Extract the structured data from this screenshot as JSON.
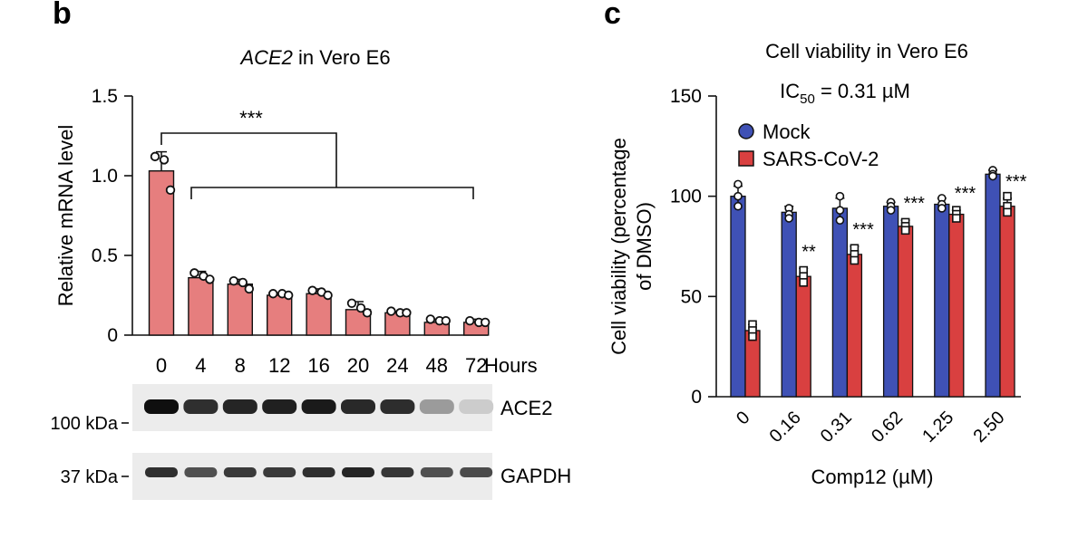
{
  "panels": {
    "b": "b",
    "c": "c"
  },
  "chart_data": [
    {
      "type": "bar",
      "title_italic": "ACE2",
      "title_rest": " in Vero E6",
      "categories": [
        "0",
        "4",
        "8",
        "12",
        "16",
        "20",
        "24",
        "48",
        "72"
      ],
      "values": [
        1.03,
        0.36,
        0.32,
        0.25,
        0.26,
        0.16,
        0.14,
        0.08,
        0.08
      ],
      "errors": [
        0.12,
        0.04,
        0.03,
        0.01,
        0.03,
        0.05,
        0.01,
        0.02,
        0.02
      ],
      "points": [
        [
          1.12,
          1.1,
          0.91
        ],
        [
          0.39,
          0.37,
          0.35
        ],
        [
          0.34,
          0.33,
          0.29
        ],
        [
          0.26,
          0.26,
          0.25
        ],
        [
          0.28,
          0.27,
          0.25
        ],
        [
          0.2,
          0.17,
          0.14
        ],
        [
          0.15,
          0.14,
          0.14
        ],
        [
          0.1,
          0.09,
          0.09
        ],
        [
          0.09,
          0.08,
          0.08
        ]
      ],
      "xlabel": "Hours",
      "ylabel": "Relative mRNA level",
      "ylim": [
        0,
        1.5
      ],
      "yticks": [
        "0",
        "0.5",
        "1.0",
        "1.5"
      ],
      "bar_color": "#e67e7e",
      "significance": "***",
      "western_blot": {
        "ace2_label": "ACE2",
        "gapdh_label": "GAPDH",
        "ace2_marker": "100 kDa",
        "gapdh_marker": "37 kDa",
        "ace2_intensity": [
          1.0,
          0.85,
          0.9,
          0.92,
          0.95,
          0.88,
          0.86,
          0.35,
          0.12
        ],
        "gapdh_intensity": [
          0.85,
          0.7,
          0.8,
          0.8,
          0.85,
          0.9,
          0.82,
          0.7,
          0.72
        ]
      }
    },
    {
      "type": "bar",
      "title": "Cell viability in Vero E6",
      "ic50_prefix": "IC",
      "ic50_sub": "50",
      "ic50_rest": " = 0.31 µM",
      "categories": [
        "0",
        "0.16",
        "0.31",
        "0.62",
        "1.25",
        "2.50"
      ],
      "series": [
        {
          "name": "Mock",
          "color": "#3f51b5",
          "values": [
            100,
            92,
            94,
            95,
            96,
            111
          ],
          "errors": [
            5,
            3,
            5,
            2,
            3,
            2
          ],
          "points": [
            [
              106,
              100,
              95
            ],
            [
              94,
              91,
              89
            ],
            [
              100,
              93,
              88
            ],
            [
              97,
              95,
              93
            ],
            [
              99,
              96,
              94
            ],
            [
              113,
              111,
              110
            ]
          ]
        },
        {
          "name": "SARS-CoV-2",
          "color": "#d94040",
          "values": [
            33,
            60,
            71,
            85,
            91,
            95
          ],
          "errors": [
            3,
            4,
            4,
            3,
            2,
            4
          ],
          "points": [
            [
              36,
              33,
              30
            ],
            [
              63,
              60,
              57
            ],
            [
              74,
              71,
              68
            ],
            [
              87,
              85,
              83
            ],
            [
              93,
              91,
              89
            ],
            [
              100,
              95,
              92
            ]
          ]
        }
      ],
      "significance": [
        "",
        "**",
        "***",
        "***",
        "***",
        "***"
      ],
      "xlabel": "Comp12 (µM)",
      "ylabel_line1": "Cell viability (percentage",
      "ylabel_line2": "of DMSO)",
      "ylim": [
        0,
        150
      ],
      "yticks": [
        "0",
        "50",
        "100",
        "150"
      ],
      "legend_position": "top-left"
    }
  ]
}
